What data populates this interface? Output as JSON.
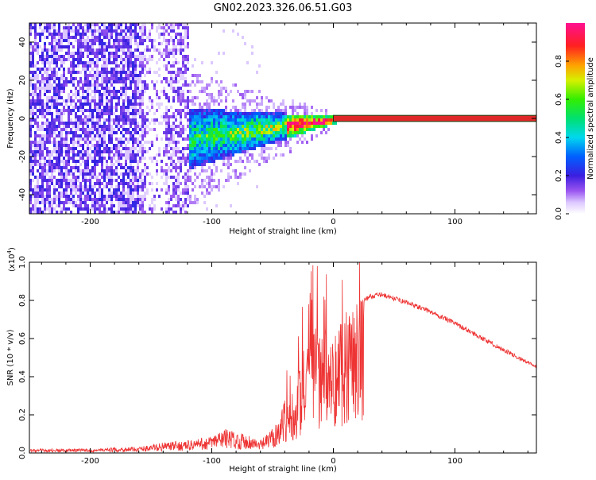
{
  "title": "GN02.2023.326.06.51.G03",
  "chart_data": [
    {
      "type": "heatmap",
      "name": "spectrogram",
      "xlabel": "Height of straight line (km)",
      "ylabel": "Frequency (Hz)",
      "xlim": [
        -250,
        167
      ],
      "ylim": [
        -50,
        50
      ],
      "x_ticks": [
        -200,
        -100,
        0,
        100
      ],
      "y_ticks": [
        -40,
        -20,
        0,
        20,
        40
      ],
      "colorbar": {
        "label": "Normalized spectral amplitude",
        "range": [
          0,
          1
        ],
        "ticks": [
          0.0,
          0.2,
          0.4,
          0.6,
          0.8
        ]
      },
      "features": {
        "noise_region_km": [
          -250,
          -120
        ],
        "convergence_km": [
          -120,
          0
        ],
        "stable_line_km": [
          0,
          167
        ],
        "stable_frequency_hz": 0
      }
    },
    {
      "type": "line",
      "name": "snr",
      "xlabel": "Height of straight line (km)",
      "ylabel": "SNR (10 * v/v)",
      "y_scale_label": "(x10",
      "y_scale_exp": "4",
      "y_scale_close": ")",
      "xlim": [
        -250,
        167
      ],
      "ylim": [
        0,
        1.0
      ],
      "x_ticks": [
        -200,
        -100,
        0,
        100
      ],
      "y_ticks": [
        0.0,
        0.2,
        0.4,
        0.6,
        0.8,
        1.0
      ],
      "color": "#ee3333",
      "envelope": {
        "x": [
          -250,
          -200,
          -160,
          -140,
          -120,
          -100,
          -90,
          -80,
          -70,
          -60,
          -50,
          -40,
          -30,
          -25,
          -20,
          -15,
          -10,
          -5,
          0,
          5,
          10,
          20,
          30,
          40,
          50,
          60,
          80,
          100,
          120,
          140,
          167
        ],
        "y": [
          0.02,
          0.02,
          0.03,
          0.05,
          0.06,
          0.08,
          0.12,
          0.1,
          0.09,
          0.06,
          0.12,
          0.25,
          0.35,
          0.48,
          0.55,
          0.6,
          0.55,
          0.62,
          0.55,
          0.66,
          0.72,
          0.78,
          0.82,
          0.83,
          0.81,
          0.79,
          0.74,
          0.68,
          0.61,
          0.54,
          0.45
        ]
      }
    }
  ]
}
